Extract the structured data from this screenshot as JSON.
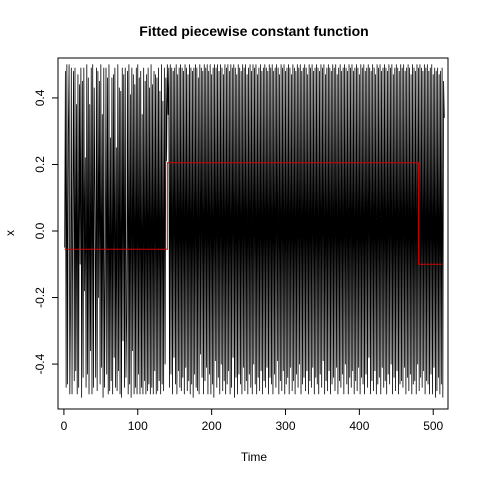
{
  "chart_data": {
    "type": "line",
    "title": "Fitted piecewise constant function",
    "xlabel": "Time",
    "ylabel": "x",
    "xlim": [
      -8,
      520
    ],
    "ylim": [
      -0.535,
      0.52
    ],
    "x_ticks": [
      0,
      100,
      200,
      300,
      400,
      500
    ],
    "x_tick_labels": [
      "0",
      "100",
      "200",
      "300",
      "400",
      "500"
    ],
    "y_ticks": [
      -0.4,
      -0.2,
      0.0,
      0.2,
      0.4
    ],
    "y_tick_labels": [
      "-0.4",
      "-0.2",
      "0.0",
      "0.2",
      "0.4"
    ],
    "grid": false,
    "legend": "none",
    "series": [
      {
        "color": "#000000",
        "style": "line",
        "x_start": 1,
        "x_step": 1,
        "values": [
          -0.05,
          0.48,
          -0.47,
          0.5,
          -0.46,
          0.3,
          0.5,
          -0.49,
          -0.2,
          0.49,
          -0.49,
          0.1,
          0.48,
          -0.45,
          0.49,
          -0.42,
          0.38,
          -0.49,
          0.47,
          -0.47,
          0.44,
          -0.1,
          0.49,
          -0.5,
          0.45,
          -0.44,
          0.49,
          -0.18,
          0.22,
          -0.47,
          0.5,
          -0.43,
          0.46,
          -0.49,
          0.38,
          -0.36,
          0.49,
          -0.49,
          0.5,
          -0.47,
          0.43,
          0.07,
          -0.44,
          0.49,
          -0.48,
          0.48,
          -0.2,
          0.45,
          -0.46,
          0.5,
          -0.41,
          0.35,
          -0.5,
          0.49,
          -0.47,
          -0.15,
          0.49,
          -0.43,
          0.46,
          -0.49,
          0.5,
          -0.48,
          0.28,
          -0.45,
          0.46,
          -0.49,
          0.47,
          -0.38,
          0.49,
          -0.47,
          0.25,
          -0.48,
          0.5,
          -0.42,
          0.43,
          -0.49,
          0.42,
          -0.5,
          0.49,
          -0.33,
          0.47,
          -0.47,
          0.49,
          -0.44,
          -0.25,
          0.48,
          -0.49,
          0.5,
          -0.46,
          0.41,
          -0.5,
          0.49,
          -0.36,
          0.47,
          -0.49,
          0.44,
          -0.47,
          0.49,
          -0.49,
          0.5,
          -0.43,
          0.46,
          -0.49,
          0.48,
          -0.47,
          0.35,
          -0.49,
          0.49,
          -0.45,
          0.45,
          -0.49,
          0.47,
          -0.48,
          0.49,
          -0.46,
          0.43,
          -0.49,
          0.5,
          -0.47,
          0.44,
          -0.49,
          0.48,
          -0.42,
          0.47,
          -0.49,
          0.46,
          -0.48,
          0.49,
          -0.45,
          0.42,
          -0.49,
          0.5,
          -0.46,
          0.39,
          -0.48,
          0.49,
          -0.4,
          0.46,
          0.21,
          0.5,
          0.35,
          0.49,
          -0.47,
          0.5,
          -0.43,
          0.49,
          -0.49,
          0.48,
          -0.38,
          0.49,
          -0.46,
          0.5,
          -0.49,
          0.47,
          -0.42,
          0.49,
          -0.47,
          0.5,
          -0.48,
          0.49,
          -0.44,
          0.48,
          -0.49,
          0.5,
          -0.41,
          0.49,
          -0.48,
          0.47,
          -0.45,
          0.5,
          -0.49,
          0.49,
          -0.46,
          0.48,
          -0.5,
          0.49,
          -0.43,
          0.5,
          -0.47,
          0.49,
          -0.48,
          0.46,
          -0.49,
          0.5,
          -0.37,
          0.49,
          -0.44,
          0.48,
          -0.49,
          0.5,
          -0.45,
          0.49,
          -0.41,
          0.5,
          -0.49,
          0.48,
          -0.43,
          0.5,
          -0.49,
          0.47,
          -0.46,
          0.49,
          -0.5,
          0.5,
          -0.39,
          0.49,
          -0.47,
          0.5,
          -0.44,
          0.48,
          -0.49,
          0.5,
          -0.4,
          0.49,
          -0.48,
          0.47,
          -0.45,
          0.5,
          -0.49,
          0.49,
          -0.46,
          0.5,
          -0.42,
          0.48,
          -0.49,
          0.5,
          -0.47,
          0.49,
          -0.38,
          0.5,
          -0.5,
          0.49,
          -0.44,
          0.47,
          -0.49,
          0.5,
          -0.43,
          0.49,
          -0.46,
          0.48,
          -0.49,
          0.5,
          -0.41,
          0.49,
          -0.48,
          0.5,
          -0.45,
          0.47,
          -0.49,
          0.49,
          -0.43,
          0.5,
          -0.47,
          0.48,
          -0.49,
          0.5,
          -0.4,
          0.49,
          -0.46,
          0.5,
          -0.49,
          0.47,
          -0.44,
          0.49,
          -0.48,
          0.5,
          -0.42,
          0.48,
          -0.49,
          0.49,
          -0.45,
          0.5,
          -0.47,
          0.49,
          -0.41,
          0.48,
          -0.49,
          0.5,
          -0.44,
          0.49,
          -0.46,
          0.5,
          -0.49,
          0.48,
          -0.43,
          0.49,
          -0.47,
          0.5,
          -0.39,
          0.49,
          -0.49,
          0.47,
          -0.45,
          0.5,
          -0.48,
          0.49,
          -0.42,
          0.5,
          -0.49,
          0.48,
          -0.46,
          0.49,
          -0.44,
          0.5,
          -0.49,
          0.49,
          -0.41,
          0.47,
          -0.48,
          0.5,
          -0.45,
          0.49,
          -0.49,
          0.48,
          -0.43,
          0.5,
          -0.47,
          0.49,
          -0.4,
          0.5,
          -0.49,
          0.48,
          -0.46,
          0.49,
          -0.44,
          0.5,
          -0.48,
          0.49,
          -0.42,
          0.47,
          -0.49,
          0.5,
          -0.45,
          0.49,
          -0.47,
          0.5,
          -0.41,
          0.48,
          -0.49,
          0.49,
          -0.44,
          0.5,
          -0.46,
          0.49,
          -0.49,
          0.48,
          -0.43,
          0.5,
          -0.47,
          0.49,
          -0.39,
          0.5,
          -0.49,
          0.47,
          -0.45,
          0.49,
          -0.48,
          0.5,
          -0.42,
          0.49,
          -0.49,
          0.48,
          -0.46,
          0.5,
          -0.44,
          0.49,
          -0.48,
          0.5,
          -0.41,
          0.47,
          -0.49,
          0.49,
          -0.45,
          0.5,
          -0.47,
          0.48,
          -0.43,
          0.49,
          -0.49,
          0.5,
          -0.4,
          0.49,
          -0.46,
          0.48,
          -0.49,
          0.5,
          -0.44,
          0.49,
          -0.47,
          0.5,
          -0.42,
          0.48,
          -0.49,
          0.49,
          -0.45,
          0.5,
          -0.48,
          0.49,
          -0.41,
          0.47,
          -0.49,
          0.5,
          -0.44,
          0.49,
          -0.46,
          0.5,
          -0.49,
          0.48,
          -0.43,
          0.49,
          -0.47,
          0.5,
          -0.38,
          0.49,
          -0.49,
          0.48,
          -0.45,
          0.5,
          -0.48,
          0.49,
          -0.42,
          0.47,
          -0.49,
          0.5,
          -0.46,
          0.49,
          -0.44,
          0.5,
          -0.49,
          0.48,
          -0.41,
          0.49,
          -0.47,
          0.5,
          -0.45,
          0.49,
          -0.49,
          0.48,
          -0.43,
          0.5,
          -0.46,
          0.49,
          -0.4,
          0.5,
          -0.49,
          0.47,
          -0.44,
          0.49,
          -0.48,
          0.5,
          -0.42,
          0.49,
          -0.49,
          0.48,
          -0.46,
          0.5,
          -0.45,
          0.49,
          -0.47,
          0.5,
          -0.41,
          0.48,
          -0.49,
          0.49,
          -0.44,
          0.5,
          -0.48,
          0.49,
          -0.43,
          0.47,
          -0.49,
          0.5,
          -0.46,
          0.49,
          -0.45,
          0.48,
          -0.49,
          0.5,
          -0.4,
          0.49,
          -0.48,
          0.5,
          -0.44,
          0.49,
          -0.47,
          0.48,
          -0.42,
          0.5,
          -0.49,
          0.49,
          -0.45,
          0.5,
          -0.46,
          0.48,
          -0.49,
          0.49,
          -0.43,
          0.5,
          -0.49,
          0.47,
          -0.41,
          0.49,
          -0.5,
          0.48,
          -0.48,
          0.49,
          -0.44,
          0.47,
          -0.49,
          0.48,
          -0.46,
          0.49,
          -0.5,
          0.45,
          0.34
        ]
      },
      {
        "color": "#cc0000",
        "style": "step",
        "segments": [
          {
            "x_start": 1,
            "x_end": 140,
            "value": -0.055
          },
          {
            "x_start": 140,
            "x_end": 480,
            "value": 0.205
          },
          {
            "x_start": 480,
            "x_end": 512,
            "value": -0.1
          }
        ]
      }
    ]
  }
}
